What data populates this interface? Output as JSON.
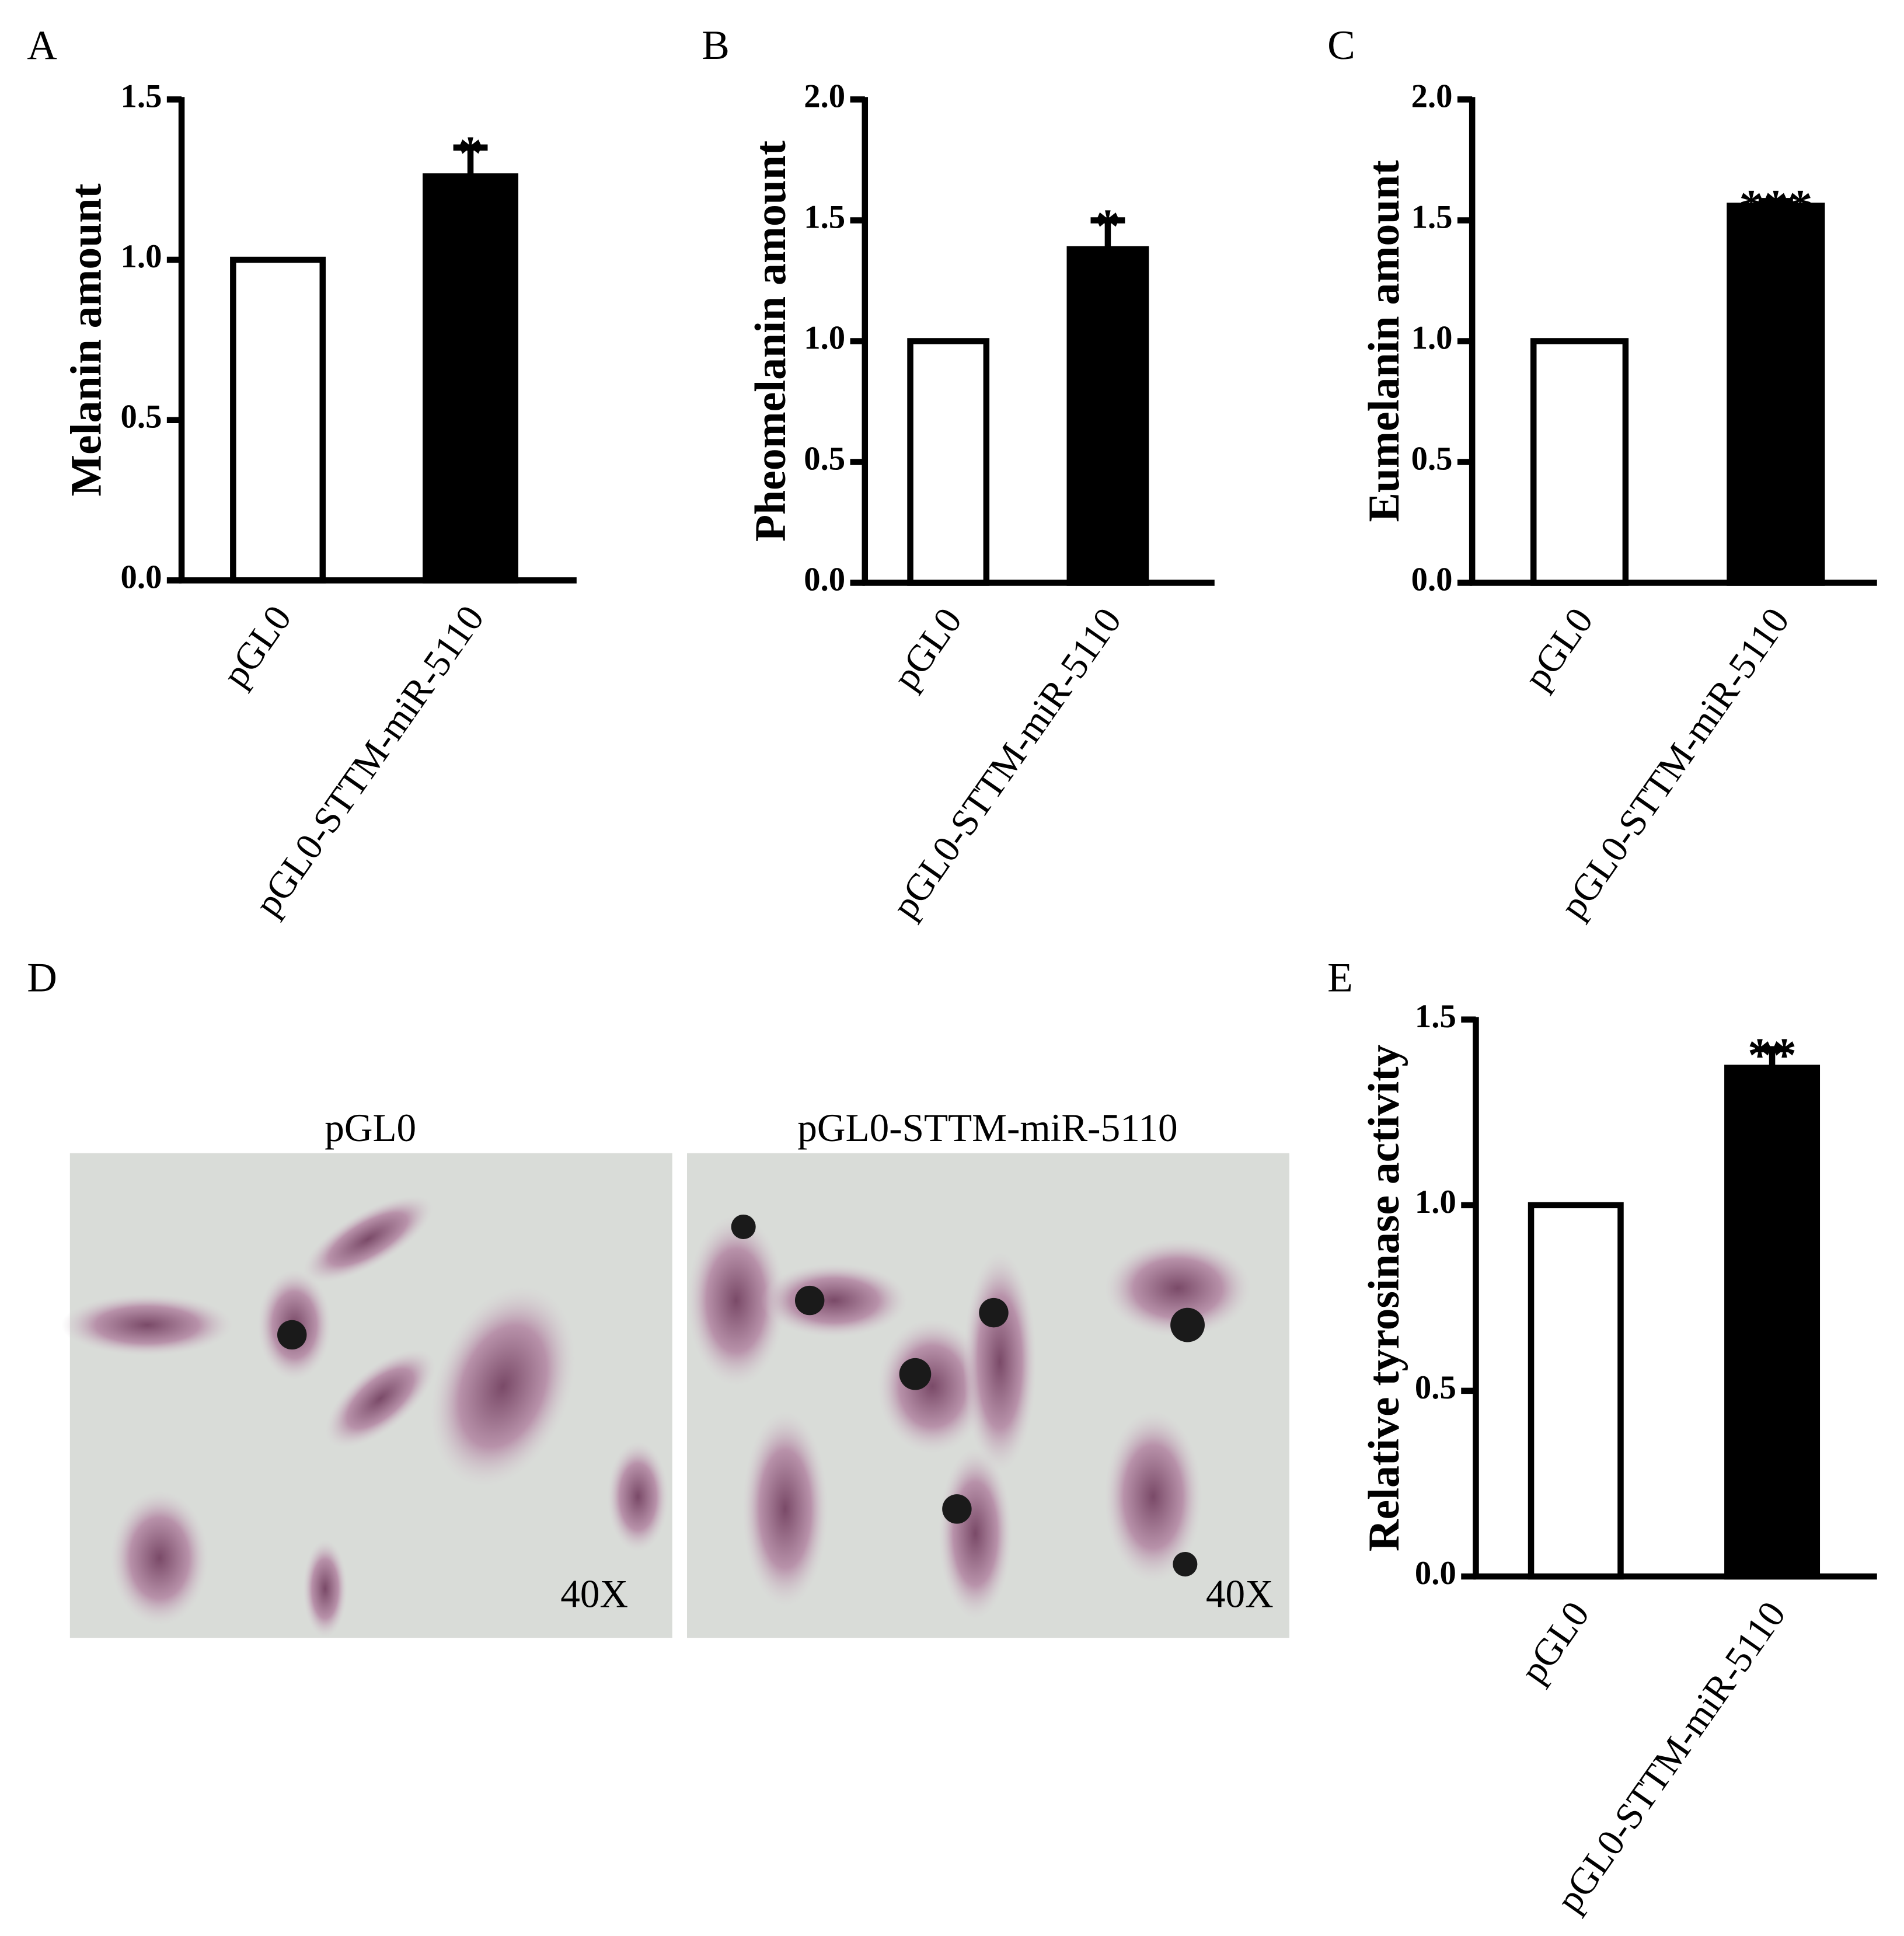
{
  "chart_data": [
    {
      "type": "bar",
      "panel": "A",
      "y_label": "Melanin amount",
      "categories": [
        "pGL0",
        "pGL0-STTM-miR-5110"
      ],
      "values": [
        1.0,
        1.26
      ],
      "errors": [
        null,
        0.09
      ],
      "colors": [
        "#ffffff",
        "#000000"
      ],
      "ylim": [
        0,
        1.5
      ],
      "yticks": [
        {
          "value": 0,
          "label": "0.0"
        },
        0.5,
        {
          "value": 1,
          "label": "1.0"
        },
        1.5
      ],
      "annotations": [
        {
          "category": "pGL0-STTM-miR-5110",
          "text": "*"
        }
      ]
    },
    {
      "type": "bar",
      "panel": "B",
      "y_label": "Pheomelanin amount",
      "categories": [
        "pGL0",
        "pGL0-STTM-miR-5110"
      ],
      "values": [
        1.0,
        1.38
      ],
      "errors": [
        null,
        0.12
      ],
      "colors": [
        "#ffffff",
        "#000000"
      ],
      "ylim": [
        0,
        2
      ],
      "yticks": [
        {
          "value": 0,
          "label": "0.0"
        },
        0.5,
        {
          "value": 1,
          "label": "1.0"
        },
        1.5,
        {
          "value": 2,
          "label": "2.0"
        }
      ],
      "annotations": [
        {
          "category": "pGL0-STTM-miR-5110",
          "text": "*"
        }
      ]
    },
    {
      "type": "bar",
      "panel": "C",
      "y_label": "Eumelanin amount",
      "categories": [
        "pGL0",
        "pGL0-STTM-miR-5110"
      ],
      "values": [
        1.0,
        1.56
      ],
      "errors": [
        null,
        0.02
      ],
      "colors": [
        "#ffffff",
        "#000000"
      ],
      "ylim": [
        0,
        2
      ],
      "yticks": [
        {
          "value": 0,
          "label": "0.0"
        },
        0.5,
        {
          "value": 1,
          "label": "1.0"
        },
        1.5,
        {
          "value": 2,
          "label": "2.0"
        }
      ],
      "annotations": [
        {
          "category": "pGL0-STTM-miR-5110",
          "text": "***"
        }
      ]
    },
    {
      "type": "bar",
      "panel": "E",
      "y_label": "Relative tyrosinase activity",
      "categories": [
        "pGL0",
        "pGL0-STTM-miR-5110"
      ],
      "values": [
        1.0,
        1.37
      ],
      "errors": [
        null,
        0.05
      ],
      "colors": [
        "#ffffff",
        "#000000"
      ],
      "ylim": [
        0,
        1.5
      ],
      "yticks": [
        {
          "value": 0,
          "label": "0.0"
        },
        0.5,
        {
          "value": 1,
          "label": "1.0"
        },
        1.5
      ],
      "annotations": [
        {
          "category": "pGL0-STTM-miR-5110",
          "text": "**"
        }
      ]
    }
  ],
  "micrograph": {
    "panel": "D",
    "images": [
      {
        "title": "pGL0",
        "magnification": "40X"
      },
      {
        "title": "pGL0-STTM-miR-5110",
        "magnification": "40X"
      }
    ]
  }
}
